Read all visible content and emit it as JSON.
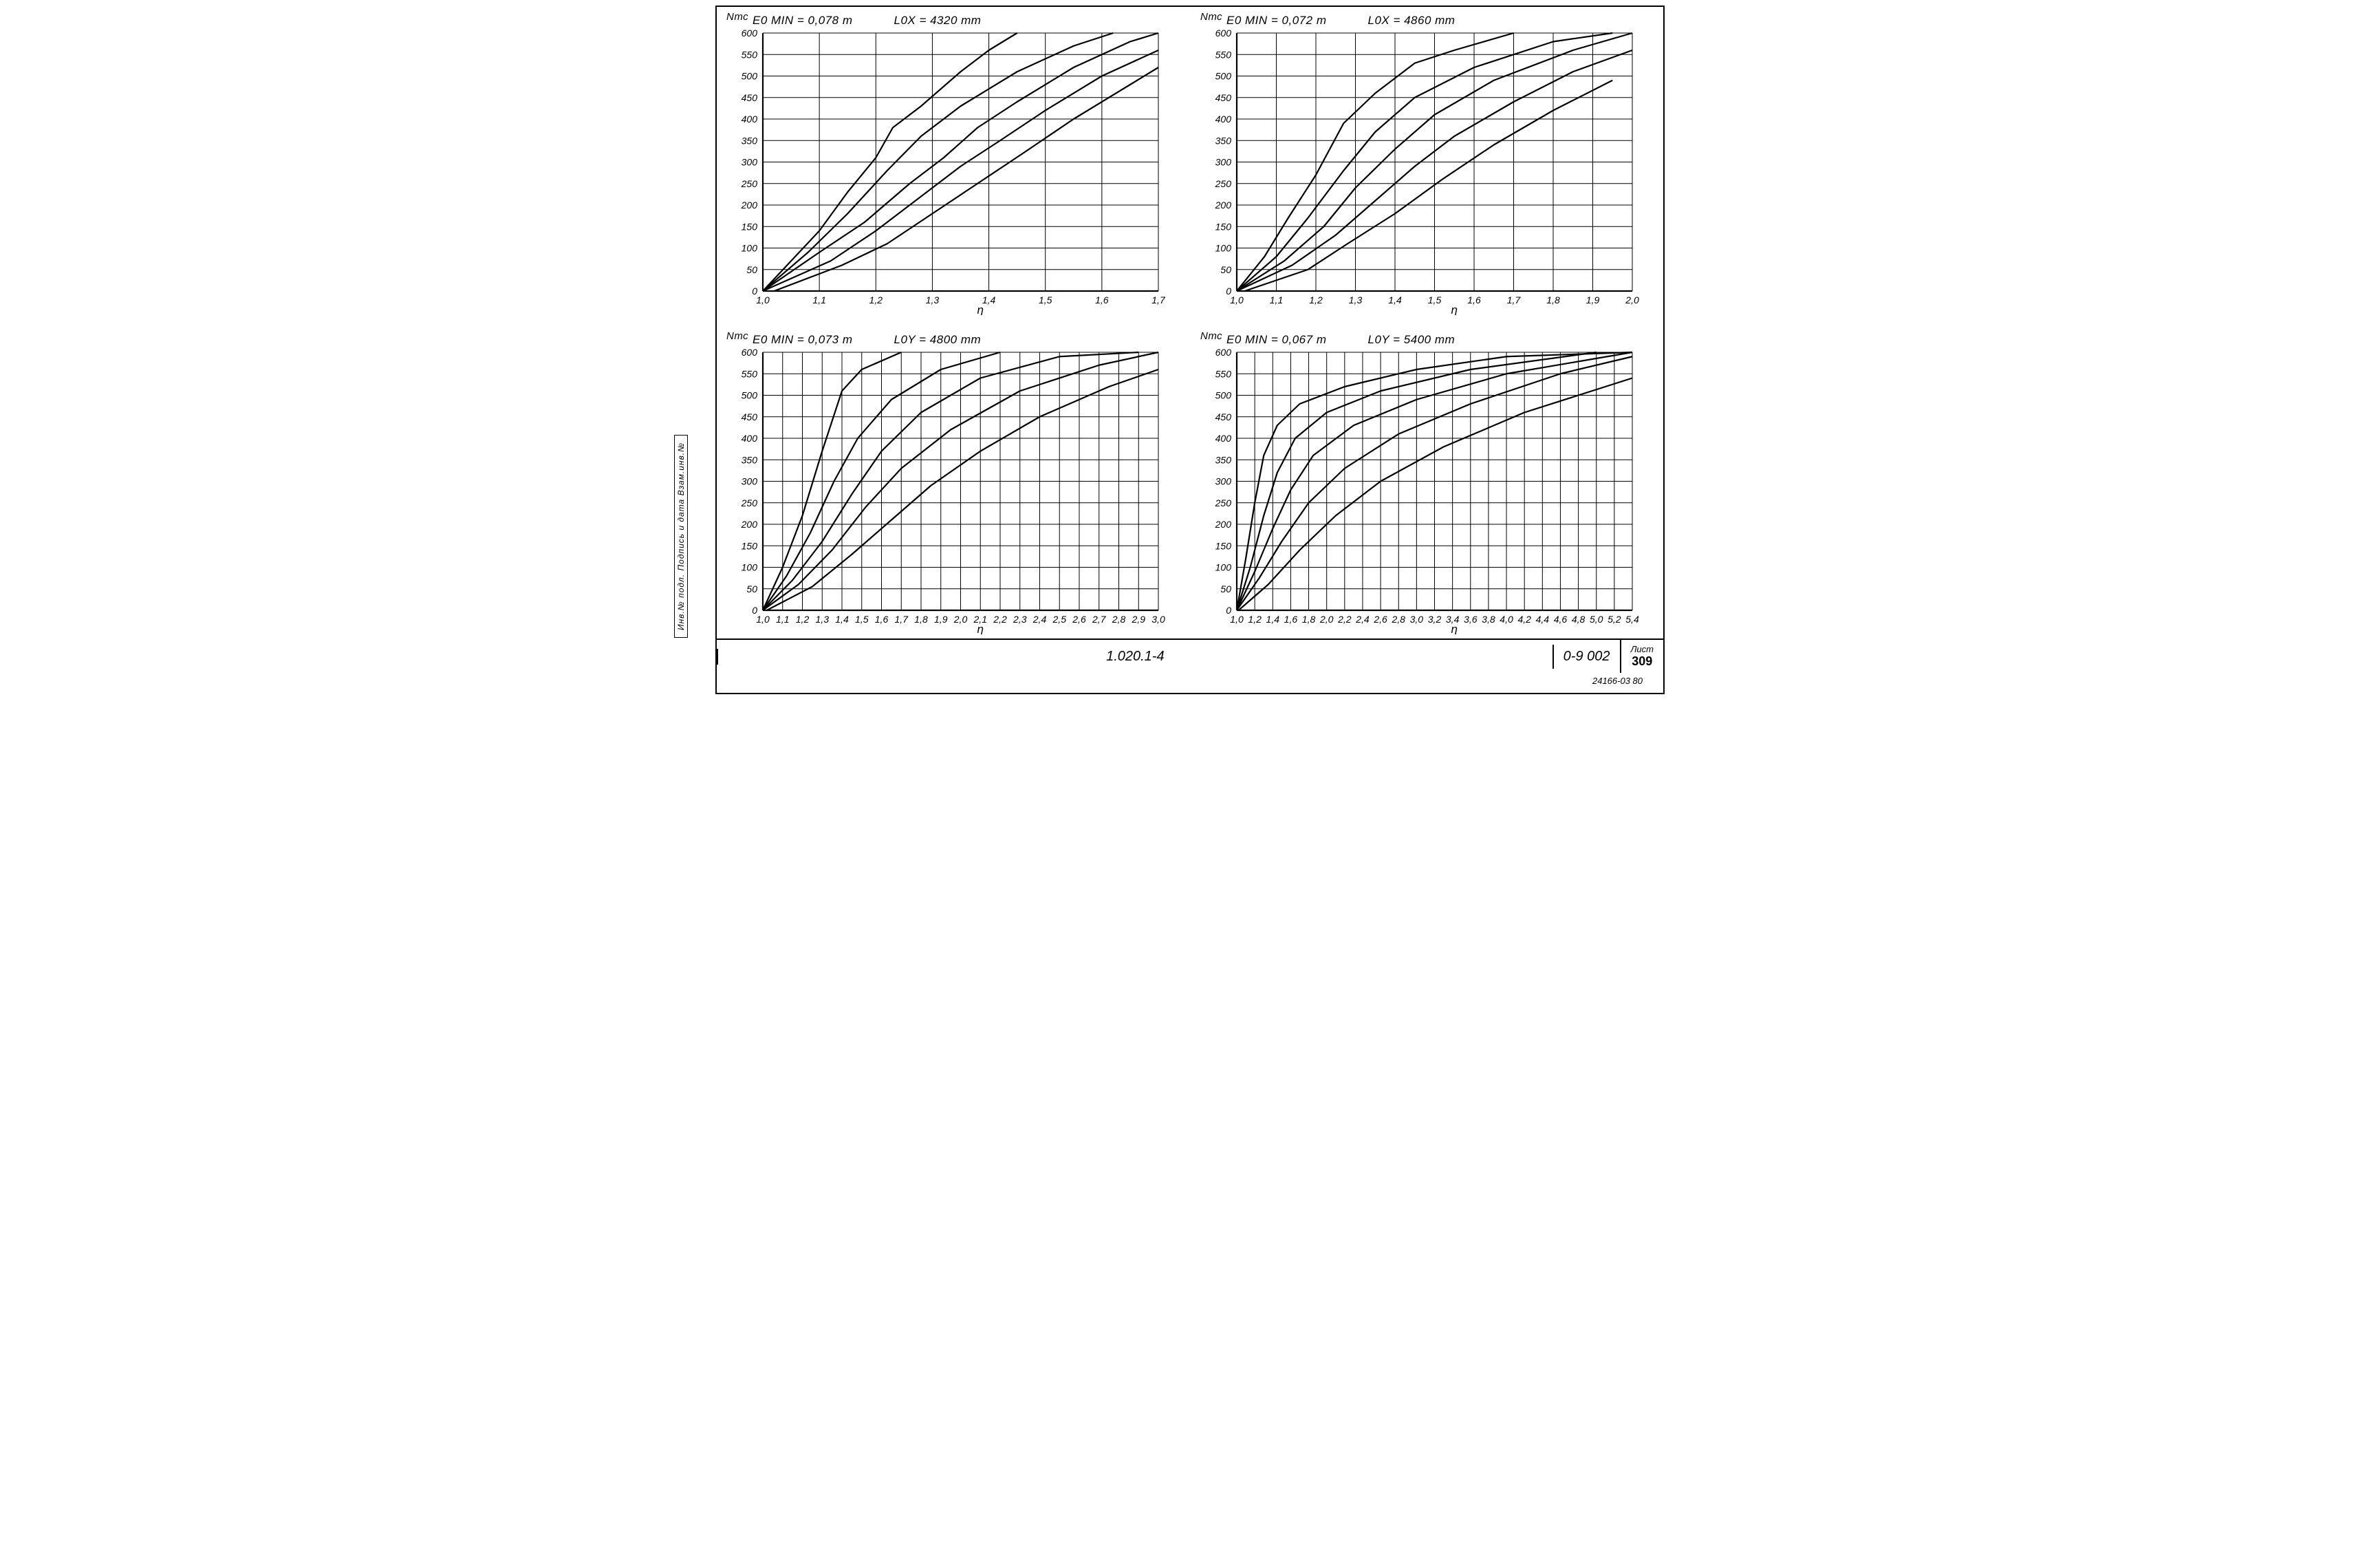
{
  "sheet": {
    "series_code": "1.020.1-4",
    "doc_code": "0-9 002",
    "sheet_label": "Лист",
    "sheet_no": "309",
    "footer": "24166-03  80",
    "side_strip": "Инв.№ подл.  Подпись и дата   Взам.инв.№"
  },
  "style": {
    "line_color": "#000000",
    "grid_color": "#000000",
    "grid_width": 1,
    "axis_width": 2.2,
    "curve_width": 2.2,
    "background": "#ffffff",
    "font_italic_small": 14,
    "font_italic_head": 17
  },
  "panels": [
    {
      "id": "tl",
      "y_title": "Nтс",
      "head_left": "E0 MIN = 0,078 m",
      "head_right": "L0X = 4320 mm",
      "x_title": "η",
      "xlim": [
        1.0,
        1.7
      ],
      "xstep": 0.1,
      "ylim": [
        0,
        600
      ],
      "ystep": 50,
      "curves": [
        [
          [
            1.0,
            0
          ],
          [
            1.05,
            70
          ],
          [
            1.1,
            140
          ],
          [
            1.15,
            230
          ],
          [
            1.2,
            310
          ],
          [
            1.23,
            380
          ],
          [
            1.28,
            430
          ],
          [
            1.35,
            510
          ],
          [
            1.4,
            560
          ],
          [
            1.45,
            600
          ]
        ],
        [
          [
            1.0,
            0
          ],
          [
            1.08,
            90
          ],
          [
            1.15,
            180
          ],
          [
            1.22,
            280
          ],
          [
            1.28,
            360
          ],
          [
            1.35,
            430
          ],
          [
            1.45,
            510
          ],
          [
            1.55,
            570
          ],
          [
            1.62,
            600
          ]
        ],
        [
          [
            1.0,
            0
          ],
          [
            1.1,
            90
          ],
          [
            1.18,
            160
          ],
          [
            1.26,
            250
          ],
          [
            1.32,
            310
          ],
          [
            1.38,
            380
          ],
          [
            1.45,
            440
          ],
          [
            1.55,
            520
          ],
          [
            1.65,
            580
          ],
          [
            1.7,
            600
          ]
        ],
        [
          [
            1.0,
            0
          ],
          [
            1.12,
            70
          ],
          [
            1.2,
            140
          ],
          [
            1.28,
            220
          ],
          [
            1.35,
            290
          ],
          [
            1.42,
            350
          ],
          [
            1.5,
            420
          ],
          [
            1.6,
            500
          ],
          [
            1.7,
            560
          ]
        ],
        [
          [
            1.02,
            0
          ],
          [
            1.14,
            60
          ],
          [
            1.22,
            110
          ],
          [
            1.3,
            180
          ],
          [
            1.38,
            250
          ],
          [
            1.46,
            320
          ],
          [
            1.55,
            400
          ],
          [
            1.65,
            480
          ],
          [
            1.7,
            520
          ]
        ]
      ]
    },
    {
      "id": "tr",
      "y_title": "Nтс",
      "head_left": "E0 MIN = 0,072 m",
      "head_right": "L0X = 4860 mm",
      "x_title": "η",
      "xlim": [
        1.0,
        2.0
      ],
      "xstep": 0.1,
      "ylim": [
        0,
        600
      ],
      "ystep": 50,
      "curves": [
        [
          [
            1.0,
            0
          ],
          [
            1.07,
            80
          ],
          [
            1.13,
            170
          ],
          [
            1.2,
            270
          ],
          [
            1.27,
            390
          ],
          [
            1.35,
            460
          ],
          [
            1.45,
            530
          ],
          [
            1.55,
            560
          ],
          [
            1.7,
            600
          ]
        ],
        [
          [
            1.0,
            0
          ],
          [
            1.1,
            80
          ],
          [
            1.18,
            170
          ],
          [
            1.27,
            280
          ],
          [
            1.35,
            370
          ],
          [
            1.45,
            450
          ],
          [
            1.6,
            520
          ],
          [
            1.8,
            580
          ],
          [
            1.95,
            600
          ]
        ],
        [
          [
            1.0,
            0
          ],
          [
            1.12,
            70
          ],
          [
            1.22,
            150
          ],
          [
            1.3,
            240
          ],
          [
            1.4,
            330
          ],
          [
            1.5,
            410
          ],
          [
            1.65,
            490
          ],
          [
            1.85,
            560
          ],
          [
            2.0,
            600
          ]
        ],
        [
          [
            1.0,
            0
          ],
          [
            1.14,
            60
          ],
          [
            1.25,
            130
          ],
          [
            1.35,
            210
          ],
          [
            1.45,
            290
          ],
          [
            1.55,
            360
          ],
          [
            1.7,
            440
          ],
          [
            1.85,
            510
          ],
          [
            2.0,
            560
          ]
        ],
        [
          [
            1.02,
            0
          ],
          [
            1.18,
            50
          ],
          [
            1.28,
            110
          ],
          [
            1.4,
            180
          ],
          [
            1.52,
            260
          ],
          [
            1.65,
            340
          ],
          [
            1.8,
            420
          ],
          [
            1.95,
            490
          ]
        ]
      ]
    },
    {
      "id": "bl",
      "y_title": "Nтс",
      "head_left": "E0 MIN = 0,073 m",
      "head_right": "L0Y = 4800 mm",
      "x_title": "η",
      "xlim": [
        1.0,
        3.0
      ],
      "xstep": 0.1,
      "ylim": [
        0,
        600
      ],
      "ystep": 50,
      "curves": [
        [
          [
            1.0,
            0
          ],
          [
            1.1,
            100
          ],
          [
            1.2,
            220
          ],
          [
            1.3,
            370
          ],
          [
            1.4,
            510
          ],
          [
            1.5,
            560
          ],
          [
            1.7,
            600
          ]
        ],
        [
          [
            1.0,
            0
          ],
          [
            1.12,
            80
          ],
          [
            1.24,
            180
          ],
          [
            1.36,
            300
          ],
          [
            1.48,
            400
          ],
          [
            1.65,
            490
          ],
          [
            1.9,
            560
          ],
          [
            2.2,
            600
          ]
        ],
        [
          [
            1.0,
            0
          ],
          [
            1.15,
            70
          ],
          [
            1.3,
            160
          ],
          [
            1.45,
            270
          ],
          [
            1.6,
            370
          ],
          [
            1.8,
            460
          ],
          [
            2.1,
            540
          ],
          [
            2.5,
            590
          ],
          [
            2.9,
            600
          ]
        ],
        [
          [
            1.0,
            0
          ],
          [
            1.18,
            60
          ],
          [
            1.35,
            140
          ],
          [
            1.52,
            240
          ],
          [
            1.7,
            330
          ],
          [
            1.95,
            420
          ],
          [
            2.3,
            510
          ],
          [
            2.7,
            570
          ],
          [
            3.0,
            600
          ]
        ],
        [
          [
            1.02,
            0
          ],
          [
            1.25,
            55
          ],
          [
            1.45,
            130
          ],
          [
            1.65,
            210
          ],
          [
            1.85,
            290
          ],
          [
            2.1,
            370
          ],
          [
            2.4,
            450
          ],
          [
            2.75,
            520
          ],
          [
            3.0,
            560
          ]
        ]
      ]
    },
    {
      "id": "br",
      "y_title": "Nтс",
      "head_left": "E0 MIN = 0,067 m",
      "head_right": "L0Y = 5400 mm",
      "x_title": "η",
      "xlim": [
        1.0,
        5.4
      ],
      "xstep": 0.2,
      "ylim": [
        0,
        600
      ],
      "ystep": 50,
      "curves": [
        [
          [
            1.0,
            0
          ],
          [
            1.1,
            120
          ],
          [
            1.2,
            250
          ],
          [
            1.3,
            360
          ],
          [
            1.45,
            430
          ],
          [
            1.7,
            480
          ],
          [
            2.2,
            520
          ],
          [
            3.0,
            560
          ],
          [
            4.0,
            590
          ],
          [
            5.4,
            600
          ]
        ],
        [
          [
            1.0,
            0
          ],
          [
            1.15,
            100
          ],
          [
            1.3,
            220
          ],
          [
            1.45,
            320
          ],
          [
            1.65,
            400
          ],
          [
            2.0,
            460
          ],
          [
            2.6,
            510
          ],
          [
            3.6,
            560
          ],
          [
            5.0,
            600
          ]
        ],
        [
          [
            1.0,
            0
          ],
          [
            1.2,
            90
          ],
          [
            1.4,
            190
          ],
          [
            1.6,
            280
          ],
          [
            1.85,
            360
          ],
          [
            2.3,
            430
          ],
          [
            3.0,
            490
          ],
          [
            4.0,
            550
          ],
          [
            5.4,
            600
          ]
        ],
        [
          [
            1.0,
            0
          ],
          [
            1.25,
            75
          ],
          [
            1.5,
            160
          ],
          [
            1.8,
            250
          ],
          [
            2.2,
            330
          ],
          [
            2.8,
            410
          ],
          [
            3.6,
            480
          ],
          [
            4.6,
            550
          ],
          [
            5.4,
            590
          ]
        ],
        [
          [
            1.02,
            0
          ],
          [
            1.35,
            60
          ],
          [
            1.7,
            140
          ],
          [
            2.1,
            220
          ],
          [
            2.6,
            300
          ],
          [
            3.3,
            380
          ],
          [
            4.2,
            460
          ],
          [
            5.4,
            540
          ]
        ]
      ]
    }
  ]
}
